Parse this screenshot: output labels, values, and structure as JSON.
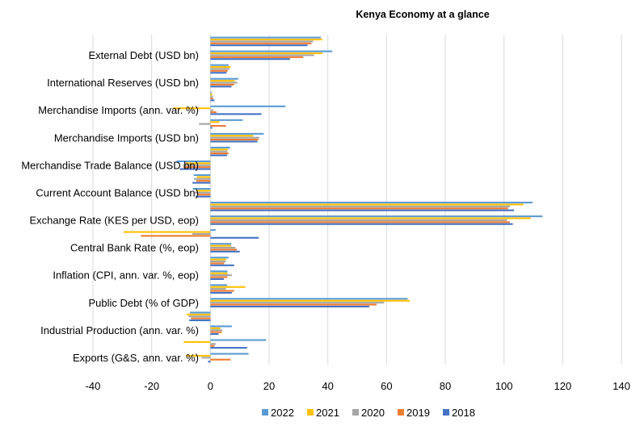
{
  "chart_data": {
    "type": "bar",
    "orientation": "horizontal",
    "title": "Kenya Economy at a glance",
    "xlabel": "",
    "ylabel": "",
    "xlim": [
      -40,
      140
    ],
    "xticks": [
      -40,
      -20,
      0,
      20,
      40,
      60,
      80,
      100,
      120,
      140
    ],
    "grid": true,
    "legend_position": "bottom",
    "categories_top_to_bottom": [
      "",
      "External Debt (USD bn)",
      "",
      "International Reserves (USD bn)",
      "",
      "Merchandise Imports (ann. var. %)",
      "",
      "Merchandise Imports (USD bn)",
      "",
      "Merchandise Trade Balance (USD bn)",
      "",
      "Current Account Balance (USD bn)",
      "",
      "Exchange Rate (KES per USD, eop)",
      "",
      "Central Bank Rate (%, eop)",
      "",
      "Inflation (CPI, ann. var. %, eop)",
      "",
      "Public Debt (% of GDP)",
      "",
      "Industrial Production (ann. var. %)",
      "",
      "Exports (G&S, ann. var. %)"
    ],
    "series": [
      {
        "name": "2022",
        "color": "#5B9BD5",
        "values": [
          37.6,
          41.5,
          6.2,
          9.5,
          0.4,
          25.6,
          11.0,
          18.2,
          6.7,
          -11.5,
          -5.7,
          -6.0,
          109.7,
          113.1,
          1.8,
          7.1,
          6.2,
          5.8,
          5.7,
          67.2,
          -7.0,
          7.3,
          19.0,
          13.0
        ]
      },
      {
        "name": "2021",
        "color": "#FFC000",
        "values": [
          38.1,
          38.2,
          6.9,
          8.3,
          0.6,
          -12.7,
          3.1,
          14.6,
          6.1,
          -8.5,
          -4.6,
          -4.8,
          106.6,
          109.1,
          -29.6,
          7.1,
          5.4,
          5.8,
          11.9,
          67.9,
          -8.1,
          3.4,
          -9.1,
          -8.3
        ]
      },
      {
        "name": "2020",
        "color": "#A5A5A5",
        "values": [
          35.0,
          35.3,
          6.5,
          9.2,
          0.9,
          1.0,
          -3.9,
          16.7,
          5.8,
          -9.4,
          -5.6,
          -5.3,
          102.0,
          101.0,
          -6.2,
          8.5,
          5.2,
          7.3,
          5.3,
          59.2,
          -7.4,
          4.0,
          1.8,
          -3.0
        ]
      },
      {
        "name": "2019",
        "color": "#ED7D31",
        "values": [
          34.4,
          31.6,
          5.9,
          8.1,
          0.9,
          2.1,
          5.3,
          16.3,
          6.2,
          -9.2,
          -4.8,
          -4.4,
          101.4,
          102.0,
          -23.7,
          9.0,
          4.7,
          5.8,
          8.1,
          56.6,
          -6.6,
          3.9,
          1.4,
          6.9
        ]
      },
      {
        "name": "2018",
        "color": "#4472C4",
        "values": [
          33.1,
          27.1,
          5.5,
          7.2,
          1.4,
          17.4,
          0.6,
          16.0,
          5.7,
          -10.4,
          -6.1,
          -5.0,
          103.4,
          103.0,
          16.5,
          10.0,
          8.1,
          4.6,
          7.3,
          54.1,
          -7.2,
          2.8,
          12.5,
          -0.8
        ]
      }
    ]
  }
}
